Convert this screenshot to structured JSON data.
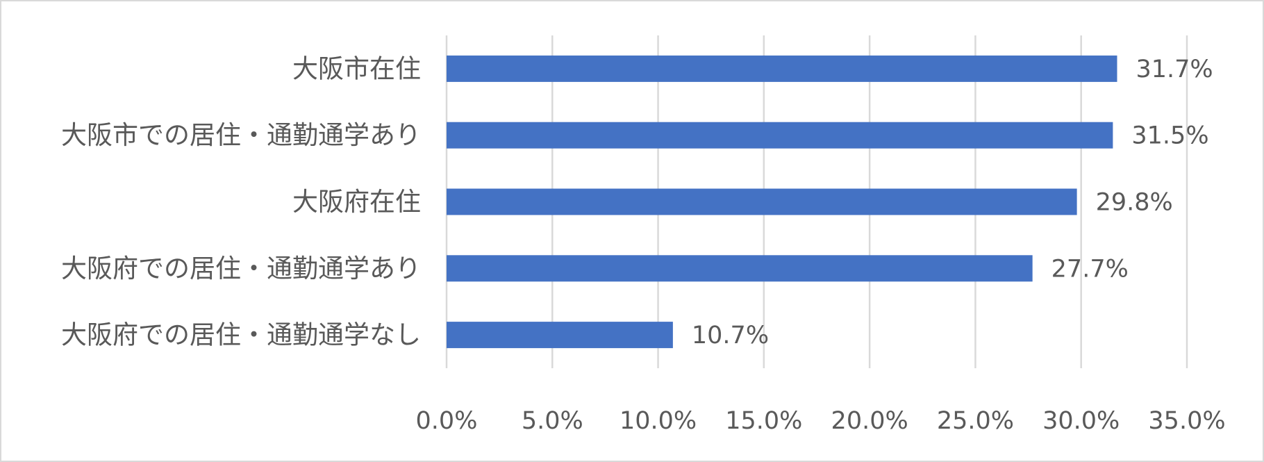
{
  "chart_data": {
    "type": "bar",
    "orientation": "horizontal",
    "categories": [
      "大阪市在住",
      "大阪市での居住・通勤通学あり",
      "大阪府在住",
      "大阪府での居住・通勤通学あり",
      "大阪府での居住・通勤通学なし"
    ],
    "values": [
      31.7,
      31.5,
      29.8,
      27.7,
      10.7
    ],
    "value_labels": [
      "31.7%",
      "31.5%",
      "29.8%",
      "27.7%",
      "10.7%"
    ],
    "color": "#4472c4",
    "xlim": [
      0,
      35
    ],
    "xticks": [
      {
        "value": 0,
        "label": "0.0%"
      },
      {
        "value": 5,
        "label": "5.0%"
      },
      {
        "value": 10,
        "label": "10.0%"
      },
      {
        "value": 15,
        "label": "15.0%"
      },
      {
        "value": 20,
        "label": "20.0%"
      },
      {
        "value": 25,
        "label": "25.0%"
      },
      {
        "value": 30,
        "label": "30.0%"
      },
      {
        "value": 35,
        "label": "35.0%"
      }
    ],
    "grid": true
  }
}
